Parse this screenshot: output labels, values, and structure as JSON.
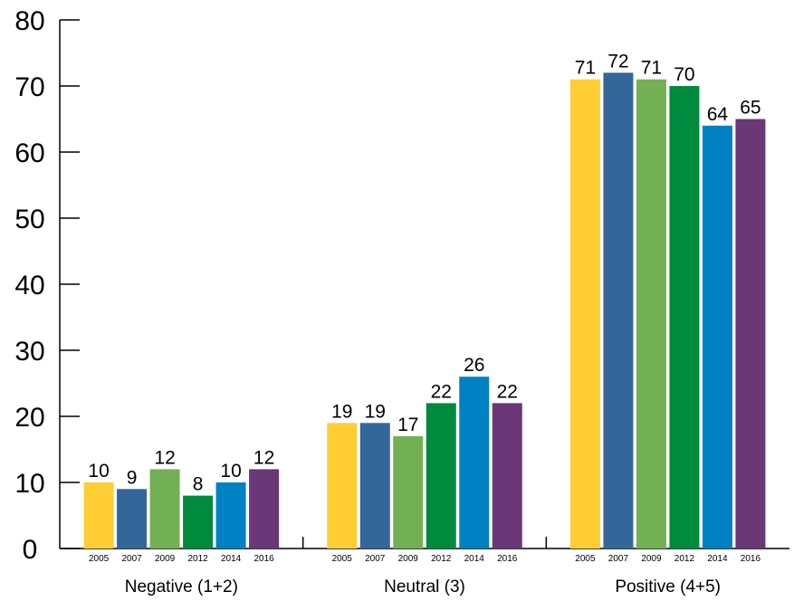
{
  "chart_data": {
    "type": "bar",
    "categories": [
      "Negative (1+2)",
      "Neutral (3)",
      "Positive (4+5)"
    ],
    "series": [
      {
        "name": "2005",
        "values": [
          10,
          19,
          71
        ],
        "color": "#ffcd34"
      },
      {
        "name": "2007",
        "values": [
          9,
          19,
          72
        ],
        "color": "#336699"
      },
      {
        "name": "2009",
        "values": [
          12,
          17,
          71
        ],
        "color": "#73b053"
      },
      {
        "name": "2012",
        "values": [
          8,
          22,
          70
        ],
        "color": "#008a3e"
      },
      {
        "name": "2014",
        "values": [
          10,
          26,
          64
        ],
        "color": "#0081c3"
      },
      {
        "name": "2016",
        "values": [
          12,
          22,
          65
        ],
        "color": "#6a3777"
      }
    ],
    "yticks": [
      0,
      10,
      20,
      30,
      40,
      50,
      60,
      70,
      80
    ],
    "ylim": [
      0,
      80
    ],
    "grid": false,
    "legend": "none",
    "title": "",
    "xlabel": "",
    "ylabel": ""
  }
}
